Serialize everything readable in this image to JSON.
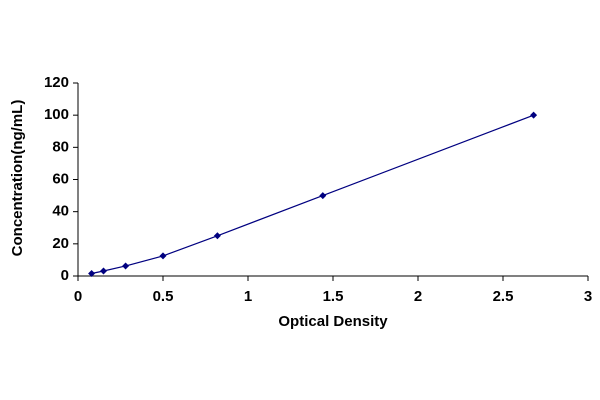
{
  "chart_data": {
    "type": "line",
    "x_label": "Optical Density",
    "y_label": "Concentration(ng/mL)",
    "x": [
      0.08,
      0.15,
      0.28,
      0.5,
      0.82,
      1.44,
      2.68
    ],
    "series": [
      {
        "color": "#000080",
        "values": [
          1.56,
          3.12,
          6.25,
          12.5,
          25,
          50,
          100
        ]
      }
    ],
    "xlim": [
      0,
      3
    ],
    "xticks": [
      0,
      0.5,
      1,
      1.5,
      2,
      2.5,
      3
    ],
    "ylim": [
      0,
      120
    ],
    "yticks": [
      0,
      20,
      40,
      60,
      80,
      100,
      120
    ],
    "grid": false
  }
}
